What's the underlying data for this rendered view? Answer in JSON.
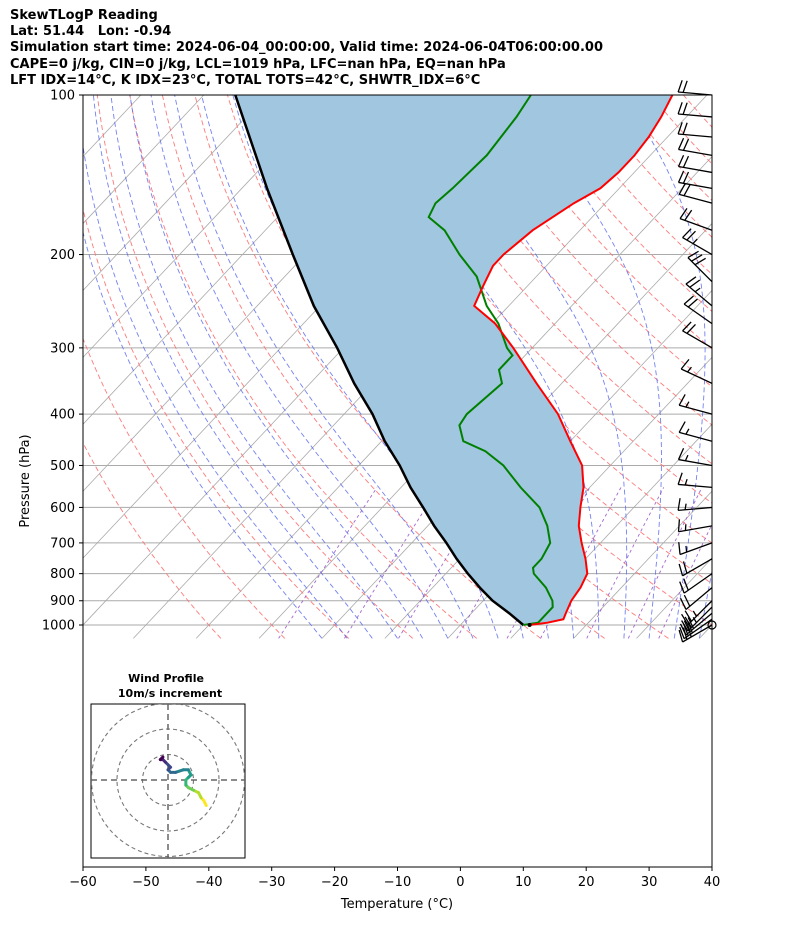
{
  "header": {
    "line1": "SkewTLogP Reading",
    "line2": "Lat: 51.44   Lon: -0.94",
    "line3": "Simulation start time: 2024-06-04_00:00:00, Valid time: 2024-06-04T06:00:00.00",
    "line4": "CAPE=0 j/kg, CIN=0 j/kg, LCL=1019 hPa, LFC=nan hPa, EQ=nan hPa",
    "line5": "LFT IDX=14°C, K IDX=23°C, TOTAL TOTS=42°C, SHWTR_IDX=6°C"
  },
  "chart_data": [
    {
      "type": "line",
      "subtype": "skew-t log-p",
      "xlabel": "Temperature (°C)",
      "ylabel": "Pressure (hPa)",
      "xlim": [
        -60,
        40
      ],
      "ylim": [
        1050,
        100
      ],
      "y_scale": "log",
      "x_ticks": [
        -60,
        -50,
        -40,
        -30,
        -20,
        -10,
        0,
        10,
        20,
        30,
        40
      ],
      "x_tick_labels": [
        "−60",
        "−50",
        "−40",
        "−30",
        "−20",
        "−10",
        "0",
        "10",
        "20",
        "30",
        "40"
      ],
      "y_ticks": [
        1000,
        900,
        800,
        700,
        600,
        500,
        400,
        300,
        200,
        100
      ],
      "y_tick_labels": [
        "1000",
        "900",
        "800",
        "700",
        "600",
        "500",
        "400",
        "300",
        "200",
        "100"
      ],
      "grid": true,
      "colors": {
        "temperature": "#ff0000",
        "dewpoint": "#008000",
        "parcel": "#000000",
        "shade": "#a1c6df",
        "dry_adiabats": "#ff6b6b",
        "moist_adiabats": "#5a6cf0",
        "isotherms": "#aaaaaa",
        "mixing_ratio": "#9955cc"
      },
      "series": [
        {
          "role": "temperature",
          "points": [
            [
              1000,
              11.0
            ],
            [
              990,
              13.5
            ],
            [
              975,
              15.5
            ],
            [
              950,
              15.0
            ],
            [
              900,
              14.0
            ],
            [
              850,
              13.5
            ],
            [
              800,
              12.5
            ],
            [
              750,
              10.0
            ],
            [
              700,
              7.0
            ],
            [
              650,
              4.0
            ],
            [
              600,
              1.5
            ],
            [
              550,
              -1.0
            ],
            [
              500,
              -4.5
            ],
            [
              450,
              -10.0
            ],
            [
              400,
              -16.0
            ],
            [
              350,
              -24.0
            ],
            [
              300,
              -33.0
            ],
            [
              270,
              -39.5
            ],
            [
              250,
              -45.5
            ],
            [
              230,
              -47.0
            ],
            [
              210,
              -48.5
            ],
            [
              200,
              -48.5
            ],
            [
              180,
              -47.5
            ],
            [
              160,
              -45.0
            ],
            [
              150,
              -43.0
            ],
            [
              140,
              -42.5
            ],
            [
              130,
              -42.5
            ],
            [
              120,
              -43.0
            ],
            [
              110,
              -44.0
            ],
            [
              100,
              -45.5
            ]
          ]
        },
        {
          "role": "dewpoint",
          "points": [
            [
              1000,
              10.0
            ],
            [
              990,
              12.0
            ],
            [
              975,
              12.0
            ],
            [
              950,
              12.0
            ],
            [
              925,
              12.0
            ],
            [
              900,
              11.0
            ],
            [
              850,
              8.0
            ],
            [
              800,
              4.0
            ],
            [
              780,
              3.0
            ],
            [
              750,
              3.0
            ],
            [
              700,
              2.0
            ],
            [
              650,
              -1.0
            ],
            [
              600,
              -5.0
            ],
            [
              550,
              -11.0
            ],
            [
              500,
              -17.0
            ],
            [
              470,
              -22.0
            ],
            [
              450,
              -27.0
            ],
            [
              420,
              -30.0
            ],
            [
              400,
              -30.5
            ],
            [
              350,
              -29.5
            ],
            [
              330,
              -32.0
            ],
            [
              310,
              -32.0
            ],
            [
              300,
              -34.0
            ],
            [
              270,
              -39.0
            ],
            [
              250,
              -43.5
            ],
            [
              220,
              -49.5
            ],
            [
              200,
              -55.5
            ],
            [
              180,
              -61.5
            ],
            [
              170,
              -66.0
            ],
            [
              160,
              -67.0
            ],
            [
              150,
              -66.5
            ],
            [
              130,
              -66.0
            ],
            [
              110,
              -67.0
            ],
            [
              100,
              -68.0
            ]
          ]
        },
        {
          "role": "parcel",
          "points": [
            [
              1000,
              10.0
            ],
            [
              950,
              6.0
            ],
            [
              900,
              1.5
            ],
            [
              850,
              -2.5
            ],
            [
              800,
              -6.5
            ],
            [
              750,
              -10.5
            ],
            [
              700,
              -14.5
            ],
            [
              650,
              -19.0
            ],
            [
              600,
              -23.5
            ],
            [
              550,
              -28.5
            ],
            [
              500,
              -33.5
            ],
            [
              450,
              -39.5
            ],
            [
              400,
              -45.5
            ],
            [
              350,
              -53.0
            ],
            [
              300,
              -61.0
            ],
            [
              250,
              -71.0
            ],
            [
              200,
              -82.0
            ],
            [
              150,
              -96.0
            ],
            [
              100,
              -115.0
            ]
          ]
        }
      ],
      "wind_barbs": [
        {
          "p": 1000,
          "speed_kt": 30,
          "dir_deg": 240
        },
        {
          "p": 975,
          "speed_kt": 30,
          "dir_deg": 235
        },
        {
          "p": 950,
          "speed_kt": 30,
          "dir_deg": 230
        },
        {
          "p": 925,
          "speed_kt": 25,
          "dir_deg": 225
        },
        {
          "p": 900,
          "speed_kt": 25,
          "dir_deg": 225
        },
        {
          "p": 850,
          "speed_kt": 20,
          "dir_deg": 230
        },
        {
          "p": 800,
          "speed_kt": 20,
          "dir_deg": 235
        },
        {
          "p": 750,
          "speed_kt": 20,
          "dir_deg": 240
        },
        {
          "p": 700,
          "speed_kt": 15,
          "dir_deg": 250
        },
        {
          "p": 650,
          "speed_kt": 15,
          "dir_deg": 260
        },
        {
          "p": 600,
          "speed_kt": 15,
          "dir_deg": 265
        },
        {
          "p": 550,
          "speed_kt": 15,
          "dir_deg": 275
        },
        {
          "p": 500,
          "speed_kt": 15,
          "dir_deg": 280
        },
        {
          "p": 450,
          "speed_kt": 15,
          "dir_deg": 285
        },
        {
          "p": 400,
          "speed_kt": 15,
          "dir_deg": 285
        },
        {
          "p": 350,
          "speed_kt": 15,
          "dir_deg": 295
        },
        {
          "p": 300,
          "speed_kt": 20,
          "dir_deg": 300
        },
        {
          "p": 270,
          "speed_kt": 20,
          "dir_deg": 305
        },
        {
          "p": 250,
          "speed_kt": 25,
          "dir_deg": 310
        },
        {
          "p": 225,
          "speed_kt": 30,
          "dir_deg": 315
        },
        {
          "p": 200,
          "speed_kt": 25,
          "dir_deg": 300
        },
        {
          "p": 180,
          "speed_kt": 20,
          "dir_deg": 290
        },
        {
          "p": 160,
          "speed_kt": 20,
          "dir_deg": 285
        },
        {
          "p": 150,
          "speed_kt": 20,
          "dir_deg": 280
        },
        {
          "p": 140,
          "speed_kt": 20,
          "dir_deg": 280
        },
        {
          "p": 130,
          "speed_kt": 20,
          "dir_deg": 280
        },
        {
          "p": 120,
          "speed_kt": 20,
          "dir_deg": 275
        },
        {
          "p": 110,
          "speed_kt": 20,
          "dir_deg": 275
        },
        {
          "p": 100,
          "speed_kt": 20,
          "dir_deg": 275
        }
      ]
    },
    {
      "type": "line",
      "subtype": "hodograph",
      "title": "Wind Profile",
      "subtitle": "10m/s increment",
      "ring_increment_ms": 10,
      "path_uv": [
        [
          15,
          -10
        ],
        [
          14,
          -8
        ],
        [
          13,
          -7
        ],
        [
          12,
          -5
        ],
        [
          10,
          -4
        ],
        [
          8,
          -3
        ],
        [
          7,
          -2
        ],
        [
          7,
          0
        ],
        [
          8,
          1
        ],
        [
          9,
          2
        ],
        [
          8,
          4
        ],
        [
          6,
          4
        ],
        [
          3,
          3
        ],
        [
          1,
          3
        ],
        [
          0,
          4
        ],
        [
          1,
          5
        ],
        [
          -1,
          7
        ],
        [
          -2,
          8
        ],
        [
          -3,
          8
        ],
        [
          -2,
          9
        ]
      ]
    }
  ]
}
